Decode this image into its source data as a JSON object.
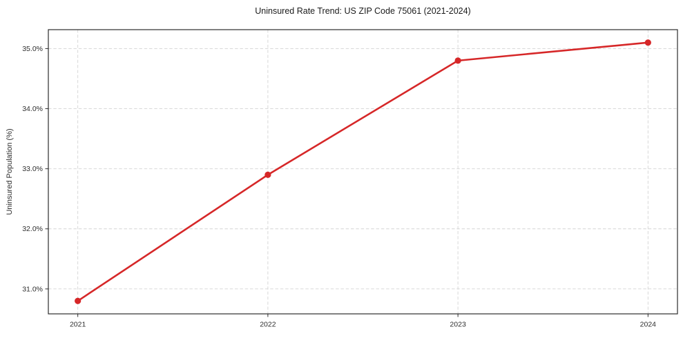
{
  "chart_data": {
    "type": "line",
    "title": "Uninsured Rate Trend: US ZIP Code 75061 (2021-2024)",
    "xlabel": "",
    "ylabel": "Uninsured Population (%)",
    "categories": [
      "2021",
      "2022",
      "2023",
      "2024"
    ],
    "series": [
      {
        "name": "Uninsured Population (%)",
        "values": [
          30.8,
          32.9,
          34.8,
          35.1
        ]
      }
    ],
    "y_ticks": [
      {
        "value": 31.0,
        "label": "31.0%"
      },
      {
        "value": 32.0,
        "label": "32.0%"
      },
      {
        "value": 33.0,
        "label": "33.0%"
      },
      {
        "value": 34.0,
        "label": "34.0%"
      },
      {
        "value": 35.0,
        "label": "35.0%"
      }
    ],
    "ylim": [
      30.585,
      35.315
    ],
    "xlim_index": [
      -0.155,
      3.155
    ],
    "grid": true,
    "legend_position": "none",
    "colors": {
      "line": "#d62728",
      "marker": "#d62728",
      "grid": "#d4d4d4",
      "axis": "#2b2b2b",
      "tick_label": "#2e2e2e",
      "title": "#1a1a1a"
    }
  }
}
